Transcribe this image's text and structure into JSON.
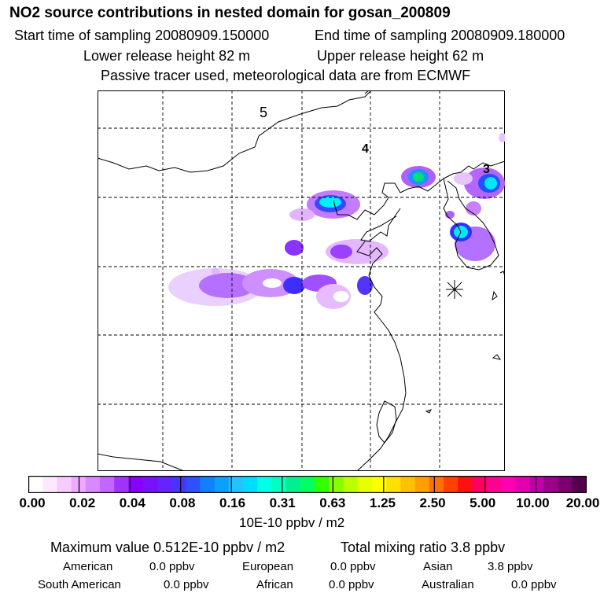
{
  "header": {
    "title": "NO2 source contributions in nested domain for gosan_200809",
    "start": "Start time of sampling 20080909.150000",
    "end": "End time of sampling 20080909.180000",
    "lower": "Lower release height   82 m",
    "upper": "Upper release height   62 m",
    "note": "Passive tracer used, meteorological data are from ECMWF"
  },
  "map": {
    "region_labels": [
      "5",
      "4",
      "3"
    ]
  },
  "colorbar": {
    "ticks": [
      "0.00",
      "0.02",
      "0.04",
      "0.08",
      "0.16",
      "0.31",
      "0.63",
      "1.25",
      "2.50",
      "5.00",
      "10.00",
      "20.00"
    ],
    "units": "10E-10 ppbv / m2"
  },
  "colors": [
    "#ffffff",
    "#fde8ff",
    "#f6ccff",
    "#eeaaff",
    "#d988ff",
    "#c266ff",
    "#a233ff",
    "#8800ff",
    "#7711ff",
    "#6622ff",
    "#4b33ff",
    "#3050ff",
    "#1180ff",
    "#0aa0ff",
    "#22c4ff",
    "#00dcff",
    "#00ffe6",
    "#00ffc0",
    "#00f090",
    "#00ff60",
    "#33ff00",
    "#88ff00",
    "#bbff00",
    "#e8ff00",
    "#ffff00",
    "#ffe000",
    "#ffc000",
    "#ffa000",
    "#ff7000",
    "#ff4000",
    "#ff1010",
    "#ff0060",
    "#ff0090",
    "#ff00b0",
    "#e000b0",
    "#c000a8",
    "#9c008a",
    "#7a0070",
    "#55004f"
  ],
  "stats": {
    "max": "Maximum value  0.512E-10 ppbv / m2",
    "total": "Total mixing ratio        3.8 ppbv",
    "rows": [
      [
        {
          "label": "American",
          "value": "0.0 ppbv"
        },
        {
          "label": "European",
          "value": "0.0 ppbv"
        },
        {
          "label": "Asian",
          "value": "3.8 ppbv"
        }
      ],
      [
        {
          "label": "South American",
          "value": "0.0 ppbv"
        },
        {
          "label": "African",
          "value": "0.0 ppbv"
        },
        {
          "label": "Australian",
          "value": "0.0 ppbv"
        }
      ]
    ]
  }
}
